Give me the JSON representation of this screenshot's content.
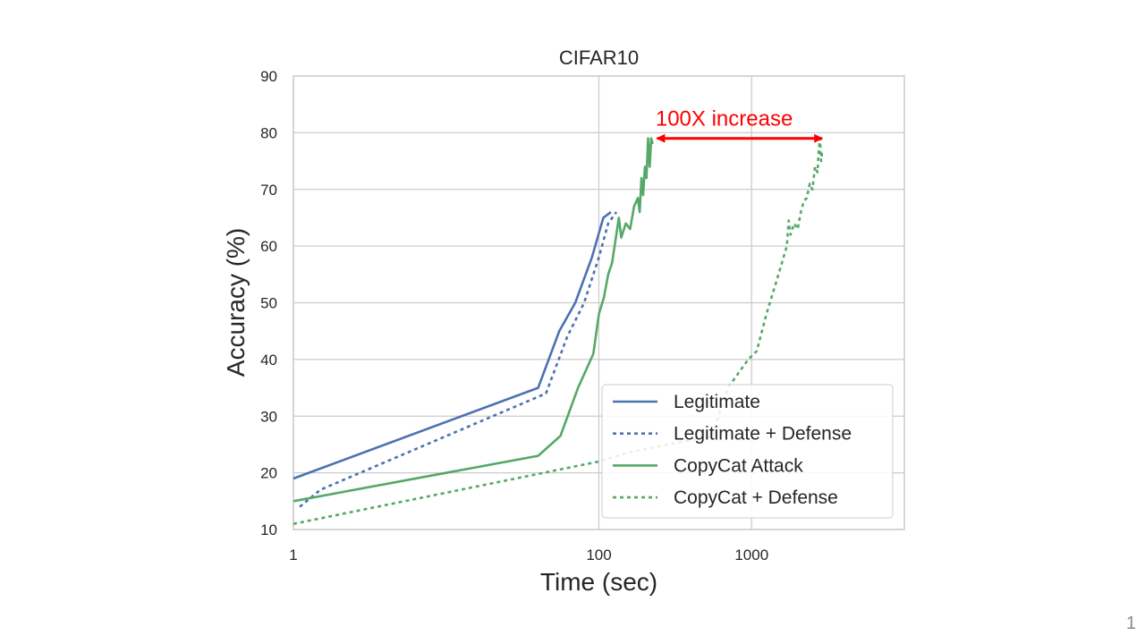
{
  "slide_number": "1",
  "chart_data": {
    "type": "line",
    "title": "CIFAR10",
    "xlabel": "Time (sec)",
    "ylabel": "Accuracy (%)",
    "xscale": "log",
    "xlim": [
      1,
      10000
    ],
    "ylim": [
      10,
      90
    ],
    "xticks": [
      1,
      100,
      1000
    ],
    "xtick_labels": [
      "1",
      "100",
      "1000"
    ],
    "yticks": [
      10,
      20,
      30,
      40,
      50,
      60,
      70,
      80,
      90
    ],
    "ytick_labels": [
      "10",
      "20",
      "30",
      "40",
      "50",
      "60",
      "70",
      "80",
      "90"
    ],
    "grid": true,
    "legend_position": "lower-right",
    "annotation": {
      "text": "100X increase",
      "color": "#ff0000",
      "arrow_from": [
        240,
        79
      ],
      "arrow_to": [
        2900,
        79
      ],
      "text_at": [
        235,
        82.5
      ]
    },
    "series": [
      {
        "name": "Legitimate",
        "color": "#4c72b0",
        "style": "solid",
        "points": [
          [
            1,
            19
          ],
          [
            40,
            35
          ],
          [
            55,
            45
          ],
          [
            70,
            50
          ],
          [
            90,
            58
          ],
          [
            107,
            65
          ],
          [
            120,
            66
          ]
        ]
      },
      {
        "name": "Legitimate + Defense",
        "color": "#4c72b0",
        "style": "dashed",
        "points": [
          [
            1.1,
            14
          ],
          [
            1.5,
            17
          ],
          [
            45,
            34
          ],
          [
            62,
            44
          ],
          [
            80,
            50
          ],
          [
            100,
            58
          ],
          [
            115,
            64
          ],
          [
            130,
            66
          ]
        ]
      },
      {
        "name": "CopyCat Attack",
        "color": "#55a868",
        "style": "solid",
        "points": [
          [
            1,
            15
          ],
          [
            40,
            23
          ],
          [
            56,
            26.5
          ],
          [
            73,
            35
          ],
          [
            92,
            41
          ],
          [
            100,
            48
          ],
          [
            108,
            51
          ],
          [
            115,
            55
          ],
          [
            122,
            57
          ],
          [
            130,
            62
          ],
          [
            135,
            65
          ],
          [
            140,
            61.5
          ],
          [
            150,
            64
          ],
          [
            160,
            63
          ],
          [
            170,
            67
          ],
          [
            180,
            68.5
          ],
          [
            185,
            66
          ],
          [
            190,
            72
          ],
          [
            195,
            69
          ],
          [
            200,
            74
          ],
          [
            205,
            72
          ],
          [
            210,
            79
          ],
          [
            215,
            74
          ],
          [
            220,
            79
          ],
          [
            225,
            78
          ]
        ]
      },
      {
        "name": "CopyCat + Defense",
        "color": "#55a868",
        "style": "dashed",
        "points": [
          [
            1,
            11
          ],
          [
            100,
            22
          ],
          [
            150,
            23.5
          ],
          [
            550,
            26.5
          ],
          [
            700,
            35
          ],
          [
            950,
            40
          ],
          [
            1080,
            41.5
          ],
          [
            1250,
            48
          ],
          [
            1500,
            55
          ],
          [
            1700,
            60
          ],
          [
            1750,
            64.5
          ],
          [
            1800,
            62
          ],
          [
            1900,
            64
          ],
          [
            2000,
            63
          ],
          [
            2100,
            66
          ],
          [
            2200,
            68
          ],
          [
            2300,
            68.5
          ],
          [
            2400,
            71
          ],
          [
            2500,
            70
          ],
          [
            2600,
            74
          ],
          [
            2700,
            73
          ],
          [
            2750,
            77
          ],
          [
            2800,
            79
          ],
          [
            2850,
            75
          ],
          [
            2900,
            77
          ]
        ]
      }
    ]
  }
}
